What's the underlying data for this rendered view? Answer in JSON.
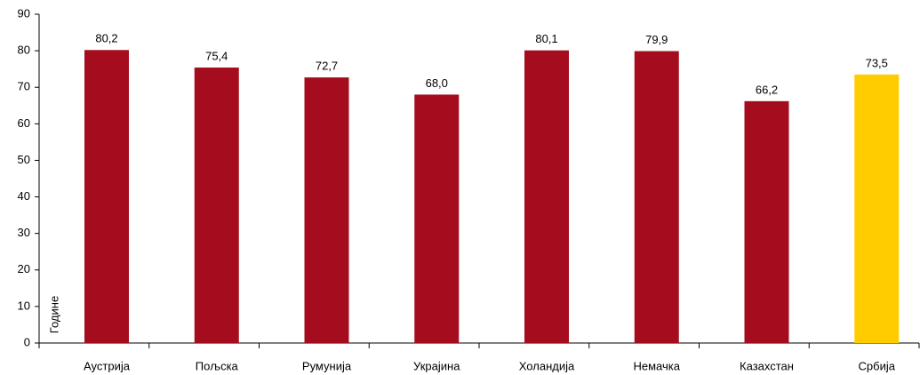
{
  "chart_data": {
    "type": "bar",
    "ylabel": "Године",
    "categories": [
      "Аустрија",
      "Пољска",
      "Румунија",
      "Украјина",
      "Холандија",
      "Немачка",
      "Казахстан",
      "Србија"
    ],
    "values": [
      80.2,
      75.4,
      72.7,
      68.0,
      80.1,
      79.9,
      66.2,
      73.5
    ],
    "value_labels": [
      "80,2",
      "75,4",
      "72,7",
      "68,0",
      "80,1",
      "79,9",
      "66,2",
      "73,5"
    ],
    "colors": [
      "#a50d1e",
      "#a50d1e",
      "#a50d1e",
      "#a50d1e",
      "#a50d1e",
      "#a50d1e",
      "#a50d1e",
      "#ffcc00"
    ],
    "ylim": [
      0,
      90
    ],
    "yticks": [
      0,
      10,
      20,
      30,
      40,
      50,
      60,
      70,
      80,
      90
    ],
    "grid": false
  }
}
